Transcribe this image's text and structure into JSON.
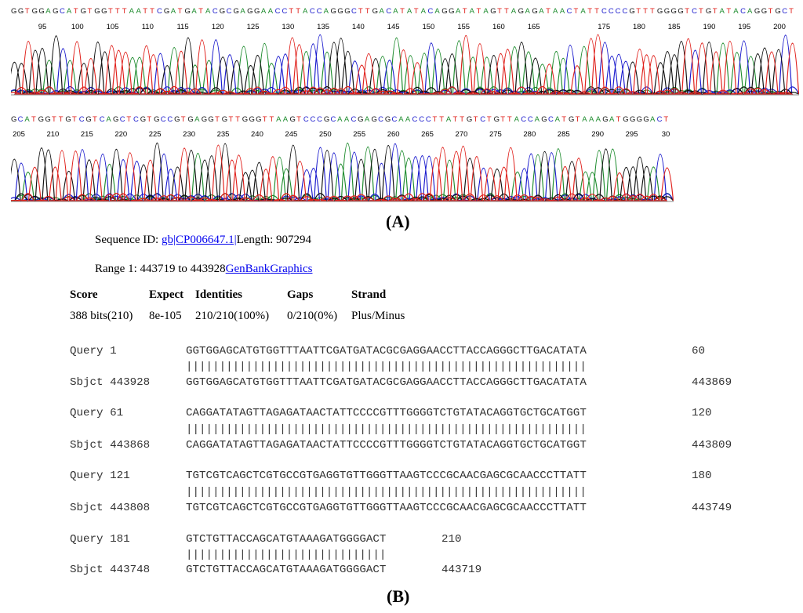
{
  "traces": [
    {
      "sequence": "GGTGGAGCATGTGGTTTAATTCGATGATACGCGAGGAACCTTACCAGGGCTTGACATATACAGGATATAGTTAGAGATAACTATTCCCCGTTTGGGGTCTGTATACAGGTGCT",
      "ticks": [
        "95",
        "100",
        "105",
        "110",
        "115",
        "120",
        "125",
        "130",
        "135",
        "140",
        "145",
        "150",
        "155",
        "160",
        "165",
        "175",
        "180",
        "185",
        "190",
        "195",
        "200"
      ]
    },
    {
      "sequence": "GCATGGTTGTCGTCAGCTCGTGCCGTGAGGTGTTGGGTTAAGTCCCGCAACGAGCGCAACCCTTATTGTCTGTTACCAGCATGTAAAGATGGGGACT",
      "ticks": [
        "205",
        "210",
        "215",
        "220",
        "225",
        "230",
        "235",
        "240",
        "245",
        "250",
        "255",
        "260",
        "265",
        "270",
        "275",
        "280",
        "285",
        "290",
        "295",
        "30"
      ]
    }
  ],
  "base_colors": {
    "A": "#1e8c2e",
    "C": "#1a1acd",
    "G": "#111111",
    "T": "#e0201b"
  },
  "panel_a_label": "(A)",
  "panel_b_label": "(B)",
  "blast": {
    "sequence_id_label": "Sequence ID: ",
    "sequence_id_link": "gb|CP006647.1|",
    "length_text": "Length: 907294",
    "range_label": "Range 1: 443719 to 443928",
    "genbank_link": "GenBank",
    "graphics_link": "Graphics",
    "headers": {
      "score": "Score",
      "expect": "Expect",
      "identities": "Identities",
      "gaps": "Gaps",
      "strand": "Strand"
    },
    "values": {
      "score": "388 bits(210)",
      "expect": "8e-105",
      "identities": "210/210(100%)",
      "gaps": "0/210(0%)",
      "strand": "Plus/Minus"
    }
  },
  "alignment": [
    {
      "query_label": "Query 1",
      "query_seq": "GGTGGAGCATGTGGTTTAATTCGATGATACGCGAGGAACCTTACCAGGGCTTGACATATA",
      "query_end": "60",
      "match": "||||||||||||||||||||||||||||||||||||||||||||||||||||||||||||",
      "sbjct_label": "Sbjct 443928",
      "sbjct_seq": "GGTGGAGCATGTGGTTTAATTCGATGATACGCGAGGAACCTTACCAGGGCTTGACATATA",
      "sbjct_end": "443869"
    },
    {
      "query_label": "Query 61",
      "query_seq": "CAGGATATAGTTAGAGATAACTATTCCCCGTTTGGGGTCTGTATACAGGTGCTGCATGGT",
      "query_end": "120",
      "match": "||||||||||||||||||||||||||||||||||||||||||||||||||||||||||||",
      "sbjct_label": "Sbjct 443868",
      "sbjct_seq": "CAGGATATAGTTAGAGATAACTATTCCCCGTTTGGGGTCTGTATACAGGTGCTGCATGGT",
      "sbjct_end": "443809"
    },
    {
      "query_label": "Query 121",
      "query_seq": "TGTCGTCAGCTCGTGCCGTGAGGTGTTGGGTTAAGTCCCGCAACGAGCGCAACCCTTATT",
      "query_end": "180",
      "match": "||||||||||||||||||||||||||||||||||||||||||||||||||||||||||||",
      "sbjct_label": "Sbjct 443808",
      "sbjct_seq": "TGTCGTCAGCTCGTGCCGTGAGGTGTTGGGTTAAGTCCCGCAACGAGCGCAACCCTTATT",
      "sbjct_end": "443749"
    },
    {
      "query_label": "Query 181",
      "query_seq": "GTCTGTTACCAGCATGTAAAGATGGGGACT",
      "query_end": "210",
      "match": "||||||||||||||||||||||||||||||",
      "sbjct_label": "Sbjct 443748",
      "sbjct_seq": "GTCTGTTACCAGCATGTAAAGATGGGGACT",
      "sbjct_end": "443719"
    }
  ]
}
